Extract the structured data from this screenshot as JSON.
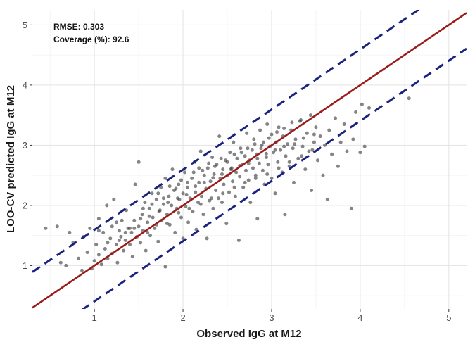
{
  "chart_data": {
    "type": "scatter",
    "xlabel": "Observed IgG at M12",
    "ylabel": "LOO-CV predicted IgG at M12",
    "xlim": [
      0.3,
      5.2
    ],
    "ylim": [
      0.28,
      5.25
    ],
    "x_ticks": [
      1,
      2,
      3,
      4,
      5
    ],
    "y_ticks": [
      1,
      2,
      3,
      4,
      5
    ],
    "x_tick_labels": [
      "1",
      "2",
      "3",
      "4",
      "5"
    ],
    "y_tick_labels": [
      "1",
      "2",
      "3",
      "4",
      "5"
    ],
    "grid": true,
    "annotations": [
      "RMSE: 0.303",
      "Coverage (%): 92.6"
    ],
    "reference_line": {
      "style": "solid",
      "color": "#9b1b1b",
      "intercept": 0,
      "slope": 1
    },
    "interval_lines": [
      {
        "style": "dashed",
        "color": "#1a237e",
        "intercept": 0.594,
        "slope": 1
      },
      {
        "style": "dashed",
        "color": "#1a237e",
        "intercept": -0.594,
        "slope": 1
      }
    ],
    "point_color": "#3a3a3a",
    "points": [
      [
        0.45,
        1.62
      ],
      [
        0.58,
        1.65
      ],
      [
        0.62,
        1.05
      ],
      [
        0.68,
        1.0
      ],
      [
        0.72,
        1.55
      ],
      [
        0.76,
        1.38
      ],
      [
        0.82,
        1.12
      ],
      [
        0.86,
        0.92
      ],
      [
        0.88,
        1.48
      ],
      [
        0.92,
        1.22
      ],
      [
        0.95,
        1.62
      ],
      [
        0.97,
        0.95
      ],
      [
        1.0,
        1.08
      ],
      [
        1.02,
        1.35
      ],
      [
        1.05,
        1.78
      ],
      [
        1.05,
        1.18
      ],
      [
        1.08,
        1.02
      ],
      [
        1.1,
        1.55
      ],
      [
        1.12,
        1.28
      ],
      [
        1.14,
        2.0
      ],
      [
        1.15,
        1.12
      ],
      [
        1.18,
        1.45
      ],
      [
        1.2,
        1.65
      ],
      [
        1.2,
        1.2
      ],
      [
        1.22,
        2.1
      ],
      [
        1.25,
        1.35
      ],
      [
        1.26,
        1.05
      ],
      [
        1.28,
        1.58
      ],
      [
        1.3,
        1.48
      ],
      [
        1.31,
        1.75
      ],
      [
        1.33,
        1.25
      ],
      [
        1.35,
        1.42
      ],
      [
        1.36,
        1.92
      ],
      [
        1.38,
        1.62
      ],
      [
        1.4,
        1.35
      ],
      [
        1.42,
        1.55
      ],
      [
        1.43,
        1.15
      ],
      [
        1.45,
        1.75
      ],
      [
        1.46,
        2.35
      ],
      [
        1.48,
        1.48
      ],
      [
        1.5,
        2.72
      ],
      [
        1.5,
        1.65
      ],
      [
        1.52,
        1.38
      ],
      [
        1.54,
        1.85
      ],
      [
        1.55,
        1.58
      ],
      [
        1.57,
        2.05
      ],
      [
        1.58,
        1.25
      ],
      [
        1.6,
        1.72
      ],
      [
        1.62,
        1.95
      ],
      [
        1.63,
        1.5
      ],
      [
        1.65,
        2.2
      ],
      [
        1.66,
        1.8
      ],
      [
        1.68,
        1.62
      ],
      [
        1.7,
        2.1
      ],
      [
        1.72,
        1.4
      ],
      [
        1.73,
        1.9
      ],
      [
        1.75,
        2.3
      ],
      [
        1.76,
        1.75
      ],
      [
        1.78,
        2.02
      ],
      [
        1.8,
        0.98
      ],
      [
        1.8,
        2.45
      ],
      [
        1.82,
        1.85
      ],
      [
        1.84,
        2.15
      ],
      [
        1.85,
        1.68
      ],
      [
        1.87,
        2.0
      ],
      [
        1.88,
        2.6
      ],
      [
        1.9,
        2.25
      ],
      [
        1.91,
        1.55
      ],
      [
        1.93,
        1.95
      ],
      [
        1.95,
        2.35
      ],
      [
        1.96,
        2.1
      ],
      [
        1.98,
        1.8
      ],
      [
        2.0,
        2.2
      ],
      [
        2.0,
        1.45
      ],
      [
        2.02,
        2.55
      ],
      [
        2.03,
        1.98
      ],
      [
        2.05,
        2.3
      ],
      [
        2.06,
        1.72
      ],
      [
        2.08,
        2.12
      ],
      [
        2.1,
        2.45
      ],
      [
        2.11,
        1.9
      ],
      [
        2.13,
        2.72
      ],
      [
        2.14,
        2.22
      ],
      [
        2.15,
        1.6
      ],
      [
        2.17,
        2.05
      ],
      [
        2.18,
        2.38
      ],
      [
        2.2,
        2.9
      ],
      [
        2.21,
        2.15
      ],
      [
        2.23,
        1.85
      ],
      [
        2.24,
        2.5
      ],
      [
        2.26,
        2.28
      ],
      [
        2.27,
        1.45
      ],
      [
        2.28,
        2.62
      ],
      [
        2.3,
        2.08
      ],
      [
        2.31,
        2.4
      ],
      [
        2.33,
        2.8
      ],
      [
        2.34,
        1.95
      ],
      [
        2.35,
        2.52
      ],
      [
        2.37,
        2.25
      ],
      [
        2.38,
        2.68
      ],
      [
        2.4,
        2.12
      ],
      [
        2.41,
        3.15
      ],
      [
        2.42,
        2.45
      ],
      [
        2.44,
        2.05
      ],
      [
        2.45,
        2.6
      ],
      [
        2.46,
        2.35
      ],
      [
        2.48,
        2.75
      ],
      [
        2.49,
        1.7
      ],
      [
        2.5,
        2.5
      ],
      [
        2.52,
        2.22
      ],
      [
        2.53,
        2.88
      ],
      [
        2.55,
        2.62
      ],
      [
        2.56,
        2.4
      ],
      [
        2.57,
        3.05
      ],
      [
        2.59,
        2.15
      ],
      [
        2.6,
        2.55
      ],
      [
        2.61,
        2.78
      ],
      [
        2.63,
        1.42
      ],
      [
        2.64,
        2.48
      ],
      [
        2.65,
        2.95
      ],
      [
        2.67,
        2.68
      ],
      [
        2.68,
        2.3
      ],
      [
        2.7,
        2.82
      ],
      [
        2.71,
        2.58
      ],
      [
        2.72,
        3.2
      ],
      [
        2.74,
        2.42
      ],
      [
        2.75,
        2.75
      ],
      [
        2.76,
        2.05
      ],
      [
        2.78,
        2.92
      ],
      [
        2.79,
        2.62
      ],
      [
        2.8,
        3.1
      ],
      [
        2.82,
        2.5
      ],
      [
        2.83,
        2.85
      ],
      [
        2.84,
        1.78
      ],
      [
        2.86,
        2.7
      ],
      [
        2.87,
        3.25
      ],
      [
        2.88,
        2.95
      ],
      [
        2.9,
        2.58
      ],
      [
        2.91,
        3.05
      ],
      [
        2.92,
        2.35
      ],
      [
        2.94,
        2.8
      ],
      [
        2.95,
        3.35
      ],
      [
        2.96,
        2.68
      ],
      [
        2.98,
        2.98
      ],
      [
        3.0,
        2.45
      ],
      [
        3.0,
        3.18
      ],
      [
        3.02,
        2.88
      ],
      [
        3.04,
        2.2
      ],
      [
        3.05,
        3.05
      ],
      [
        3.07,
        2.72
      ],
      [
        3.08,
        3.3
      ],
      [
        3.1,
        2.92
      ],
      [
        3.12,
        2.55
      ],
      [
        3.13,
        3.15
      ],
      [
        3.15,
        1.85
      ],
      [
        3.16,
        2.82
      ],
      [
        3.18,
        3.02
      ],
      [
        3.2,
        2.65
      ],
      [
        3.22,
        3.25
      ],
      [
        3.24,
        2.95
      ],
      [
        3.25,
        2.38
      ],
      [
        3.27,
        3.1
      ],
      [
        3.3,
        2.78
      ],
      [
        3.32,
        3.4
      ],
      [
        3.35,
        2.98
      ],
      [
        3.38,
        2.6
      ],
      [
        3.4,
        3.2
      ],
      [
        3.42,
        2.9
      ],
      [
        3.45,
        2.25
      ],
      [
        3.48,
        3.05
      ],
      [
        3.5,
        3.3
      ],
      [
        3.52,
        2.75
      ],
      [
        3.55,
        3.15
      ],
      [
        3.58,
        2.5
      ],
      [
        3.6,
        3.0
      ],
      [
        3.63,
        2.1
      ],
      [
        3.65,
        3.25
      ],
      [
        3.68,
        2.85
      ],
      [
        3.72,
        3.45
      ],
      [
        3.75,
        2.65
      ],
      [
        3.78,
        3.05
      ],
      [
        3.82,
        3.35
      ],
      [
        3.85,
        2.9
      ],
      [
        3.9,
        1.95
      ],
      [
        3.92,
        3.1
      ],
      [
        3.95,
        3.55
      ],
      [
        4.0,
        2.88
      ],
      [
        4.02,
        3.68
      ],
      [
        4.05,
        2.98
      ],
      [
        4.1,
        3.62
      ],
      [
        4.55,
        3.78
      ],
      [
        1.05,
        1.58
      ],
      [
        1.25,
        1.72
      ],
      [
        1.35,
        1.55
      ],
      [
        1.45,
        1.62
      ],
      [
        1.55,
        1.95
      ],
      [
        1.65,
        2.02
      ],
      [
        1.72,
        2.2
      ],
      [
        1.78,
        2.12
      ],
      [
        1.85,
        2.32
      ],
      [
        1.92,
        2.28
      ],
      [
        1.98,
        2.42
      ],
      [
        2.05,
        2.38
      ],
      [
        2.12,
        2.55
      ],
      [
        2.18,
        2.62
      ],
      [
        2.22,
        2.58
      ],
      [
        2.29,
        2.7
      ],
      [
        2.36,
        2.65
      ],
      [
        2.43,
        2.78
      ],
      [
        2.5,
        2.72
      ],
      [
        2.58,
        2.85
      ],
      [
        2.66,
        2.88
      ],
      [
        2.73,
        2.95
      ],
      [
        2.81,
        3.02
      ],
      [
        2.89,
        3.0
      ],
      [
        2.97,
        3.12
      ],
      [
        3.06,
        3.22
      ],
      [
        3.14,
        3.28
      ],
      [
        3.23,
        3.38
      ],
      [
        3.33,
        3.42
      ],
      [
        3.44,
        3.5
      ],
      [
        1.15,
        1.38
      ],
      [
        1.28,
        1.42
      ],
      [
        1.4,
        1.62
      ],
      [
        1.52,
        1.78
      ],
      [
        1.62,
        1.82
      ],
      [
        1.74,
        1.92
      ],
      [
        1.83,
        2.05
      ],
      [
        1.94,
        2.12
      ],
      [
        2.04,
        2.18
      ],
      [
        2.14,
        2.32
      ],
      [
        2.24,
        2.38
      ],
      [
        2.34,
        2.46
      ],
      [
        2.44,
        2.52
      ],
      [
        2.54,
        2.6
      ],
      [
        2.64,
        2.66
      ],
      [
        2.74,
        2.7
      ],
      [
        2.84,
        2.78
      ],
      [
        2.94,
        2.86
      ],
      [
        3.04,
        2.92
      ],
      [
        3.14,
        2.98
      ],
      [
        3.26,
        3.02
      ],
      [
        3.36,
        3.12
      ],
      [
        3.48,
        3.18
      ],
      [
        1.6,
        1.55
      ],
      [
        1.7,
        1.68
      ],
      [
        1.82,
        1.7
      ],
      [
        1.95,
        1.88
      ],
      [
        2.07,
        1.95
      ],
      [
        2.2,
        2.02
      ],
      [
        2.32,
        2.12
      ],
      [
        2.45,
        2.2
      ],
      [
        2.58,
        2.3
      ],
      [
        2.7,
        2.38
      ],
      [
        2.82,
        2.45
      ],
      [
        2.95,
        2.52
      ],
      [
        3.08,
        2.62
      ],
      [
        3.2,
        2.72
      ],
      [
        3.34,
        2.82
      ],
      [
        3.46,
        2.92
      ]
    ]
  }
}
